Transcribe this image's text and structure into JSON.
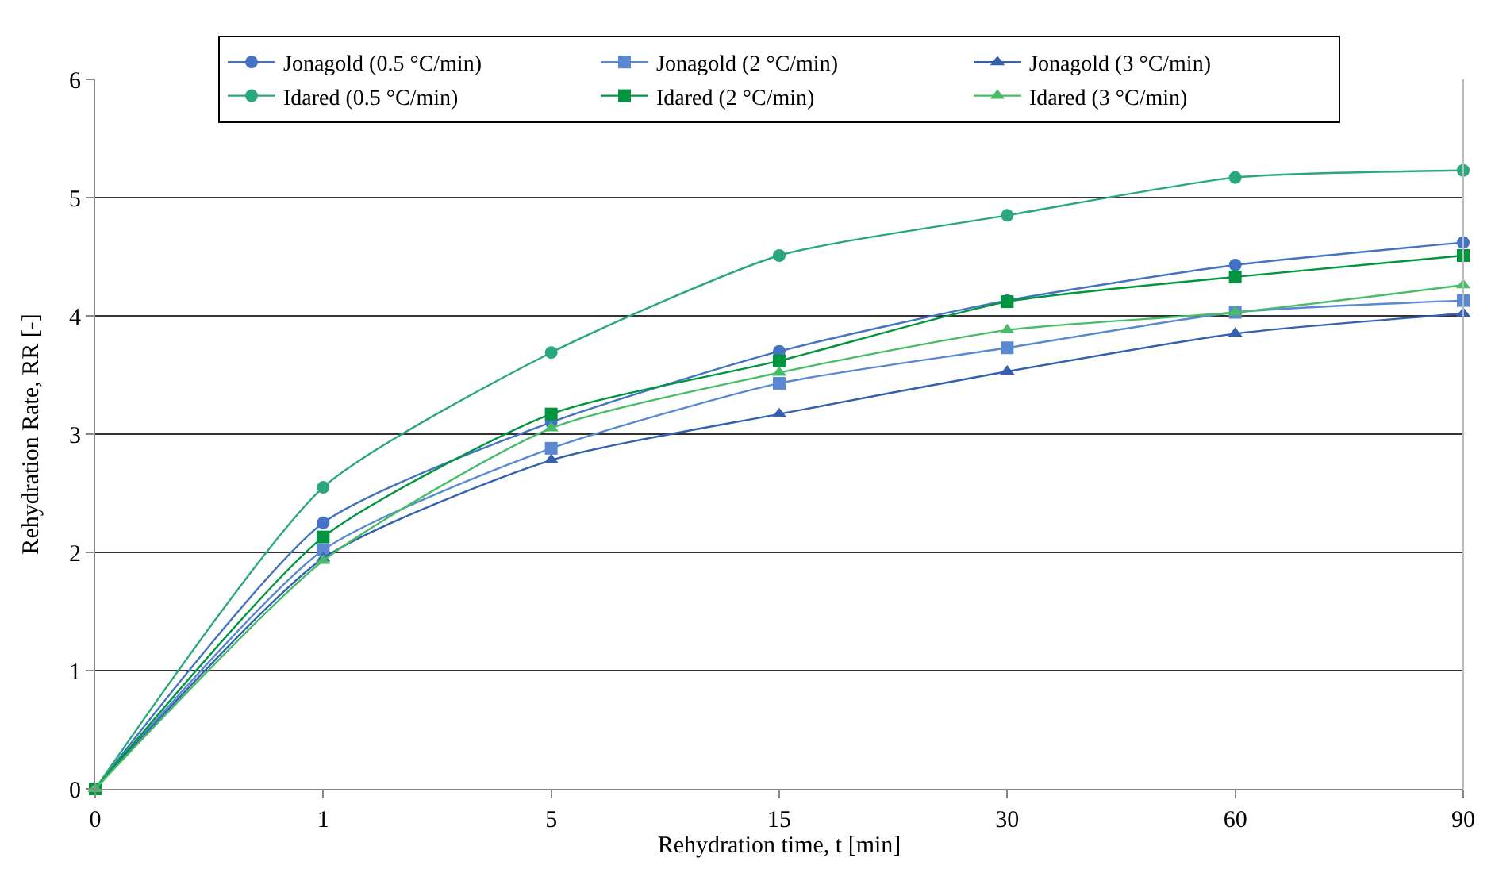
{
  "chart_data": {
    "type": "line",
    "xlabel": "Rehydration time, t [min]",
    "ylabel": "Rehydration Rate, RR [-]",
    "categories": [
      "0",
      "1",
      "5",
      "15",
      "30",
      "60",
      "90"
    ],
    "ylim": [
      0,
      6
    ],
    "yticks": [
      0,
      1,
      2,
      3,
      4,
      5,
      6
    ],
    "grid": "y",
    "legend": "top",
    "series": [
      {
        "name": "Jonagold (0.5 °C/min)",
        "color": "#4472c4",
        "marker": "circle",
        "values": [
          0,
          2.25,
          3.1,
          3.7,
          4.13,
          4.43,
          4.62
        ]
      },
      {
        "name": "Jonagold (2 °C/min)",
        "color": "#5b88d2",
        "marker": "square",
        "values": [
          0,
          2.02,
          2.88,
          3.43,
          3.73,
          4.03,
          4.13
        ]
      },
      {
        "name": "Jonagold (3 °C/min)",
        "color": "#3560b0",
        "marker": "triangle",
        "values": [
          0,
          1.95,
          2.78,
          3.17,
          3.53,
          3.85,
          4.02
        ]
      },
      {
        "name": "Idared (0.5 °C/min)",
        "color": "#2aa87c",
        "marker": "circle",
        "values": [
          0,
          2.55,
          3.69,
          4.51,
          4.85,
          5.17,
          5.23
        ]
      },
      {
        "name": "Idared (2 °C/min)",
        "color": "#00963f",
        "marker": "square",
        "values": [
          0,
          2.13,
          3.17,
          3.62,
          4.12,
          4.33,
          4.51
        ]
      },
      {
        "name": "Idared (3 °C/min)",
        "color": "#48bc68",
        "marker": "triangle",
        "values": [
          0,
          1.93,
          3.05,
          3.52,
          3.88,
          4.03,
          4.26
        ]
      }
    ]
  }
}
